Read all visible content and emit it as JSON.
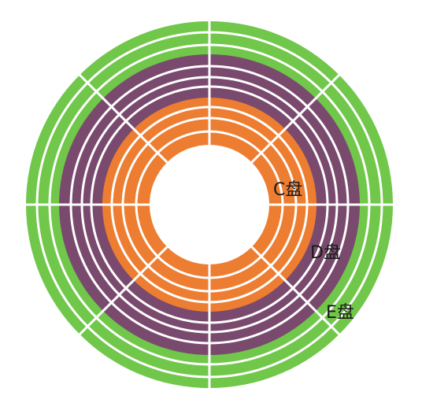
{
  "partitions": [
    {
      "name": "C盘",
      "color": "#ED7D31"
    },
    {
      "name": "D盘",
      "color": "#7A4A6E"
    },
    {
      "name": "E盘",
      "color": "#70C74A"
    }
  ],
  "track_line_color": "#ffffff",
  "background_color": "#ffffff"
}
